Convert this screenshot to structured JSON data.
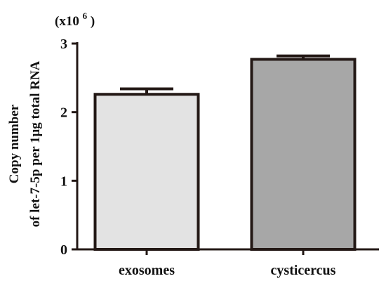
{
  "chart_data": {
    "type": "bar",
    "categories": [
      "exosomes",
      "cysticercus"
    ],
    "values": [
      2.26,
      2.77
    ],
    "errors": [
      0.08,
      0.05
    ],
    "ylim": [
      0,
      3
    ],
    "yticks": [
      "0",
      "1",
      "2",
      "3"
    ],
    "scale_label_base": "(x10",
    "scale_label_exp": "6",
    "scale_label_end": ")",
    "ylabel_line1": "Copy number",
    "ylabel_line2": "of let-7-5p per 1μg total RNA",
    "xlabel": "",
    "grid": false,
    "colors": {
      "bars": [
        "#e3e3e3",
        "#a7a7a7"
      ],
      "outline": "#231815",
      "text": "#111111"
    }
  }
}
